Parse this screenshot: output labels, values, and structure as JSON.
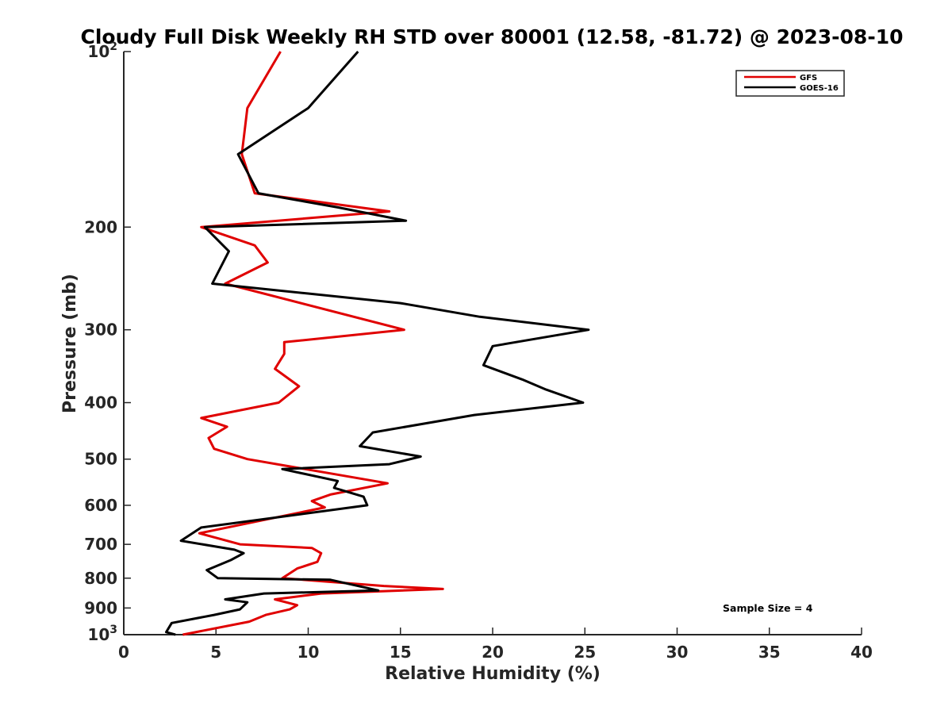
{
  "chart_data": {
    "type": "line",
    "title": "Cloudy Full Disk Weekly RH STD over 80001 (12.58, -81.72) @ 2023-08-10",
    "xlabel": "Relative Humidity (%)",
    "ylabel": "Pressure (mb)",
    "xlim": [
      0,
      40
    ],
    "ylim": [
      100,
      1000
    ],
    "y_scale": "log",
    "y_reversed": true,
    "x_ticks": [
      "0",
      "5",
      "10",
      "15",
      "20",
      "25",
      "30",
      "35",
      "40"
    ],
    "y_ticks": [
      {
        "value": 100,
        "base": "10",
        "exp": "2"
      },
      {
        "value": 200,
        "base": "200",
        "exp": ""
      },
      {
        "value": 300,
        "base": "300",
        "exp": ""
      },
      {
        "value": 400,
        "base": "400",
        "exp": ""
      },
      {
        "value": 500,
        "base": "500",
        "exp": ""
      },
      {
        "value": 600,
        "base": "600",
        "exp": ""
      },
      {
        "value": 700,
        "base": "700",
        "exp": ""
      },
      {
        "value": 800,
        "base": "800",
        "exp": ""
      },
      {
        "value": 900,
        "base": "900",
        "exp": ""
      },
      {
        "value": 1000,
        "base": "10",
        "exp": "3"
      }
    ],
    "grid": false,
    "legend_position": "top-right",
    "annotation": "Sample Size = 4",
    "series": [
      {
        "name": "GFS",
        "color": "#e00000",
        "points": [
          [
            8.5,
            100
          ],
          [
            6.7,
            125
          ],
          [
            6.4,
            150
          ],
          [
            7.1,
            175
          ],
          [
            14.4,
            188
          ],
          [
            4.2,
            200
          ],
          [
            7.1,
            215
          ],
          [
            7.8,
            230
          ],
          [
            5.5,
            250
          ],
          [
            15.2,
            300
          ],
          [
            8.7,
            315
          ],
          [
            8.7,
            330
          ],
          [
            8.2,
            350
          ],
          [
            9.5,
            375
          ],
          [
            8.4,
            400
          ],
          [
            4.2,
            425
          ],
          [
            5.6,
            440
          ],
          [
            4.6,
            460
          ],
          [
            4.9,
            480
          ],
          [
            6.7,
            500
          ],
          [
            14.3,
            550
          ],
          [
            11.2,
            575
          ],
          [
            10.2,
            590
          ],
          [
            10.9,
            605
          ],
          [
            4.1,
            670
          ],
          [
            6.3,
            700
          ],
          [
            10.2,
            710
          ],
          [
            10.7,
            725
          ],
          [
            10.5,
            750
          ],
          [
            9.4,
            770
          ],
          [
            8.6,
            800
          ],
          [
            14.1,
            825
          ],
          [
            17.3,
            835
          ],
          [
            10.7,
            850
          ],
          [
            8.2,
            870
          ],
          [
            9.4,
            890
          ],
          [
            9.0,
            905
          ],
          [
            7.7,
            925
          ],
          [
            6.8,
            950
          ],
          [
            3.2,
            1000
          ]
        ]
      },
      {
        "name": "GOES-16",
        "color": "#000000",
        "points": [
          [
            12.7,
            100
          ],
          [
            10.0,
            125
          ],
          [
            6.2,
            150
          ],
          [
            7.3,
            175
          ],
          [
            11.6,
            185
          ],
          [
            15.3,
            195
          ],
          [
            4.4,
            200
          ],
          [
            5.7,
            220
          ],
          [
            4.8,
            250
          ],
          [
            10.0,
            260
          ],
          [
            15.0,
            270
          ],
          [
            19.3,
            285
          ],
          [
            25.2,
            300
          ],
          [
            20.0,
            320
          ],
          [
            19.5,
            345
          ],
          [
            21.6,
            365
          ],
          [
            22.9,
            380
          ],
          [
            24.9,
            400
          ],
          [
            19.0,
            420
          ],
          [
            13.5,
            450
          ],
          [
            12.8,
            475
          ],
          [
            16.1,
            495
          ],
          [
            14.4,
            510
          ],
          [
            8.6,
            520
          ],
          [
            11.6,
            545
          ],
          [
            11.4,
            560
          ],
          [
            13.0,
            580
          ],
          [
            13.2,
            600
          ],
          [
            4.2,
            655
          ],
          [
            3.1,
            690
          ],
          [
            6.0,
            715
          ],
          [
            6.5,
            725
          ],
          [
            5.8,
            745
          ],
          [
            4.5,
            775
          ],
          [
            5.1,
            800
          ],
          [
            11.2,
            805
          ],
          [
            13.8,
            840
          ],
          [
            7.6,
            850
          ],
          [
            5.5,
            870
          ],
          [
            6.7,
            880
          ],
          [
            6.3,
            905
          ],
          [
            4.9,
            925
          ],
          [
            2.6,
            955
          ],
          [
            2.3,
            990
          ],
          [
            2.8,
            1000
          ]
        ]
      }
    ]
  }
}
